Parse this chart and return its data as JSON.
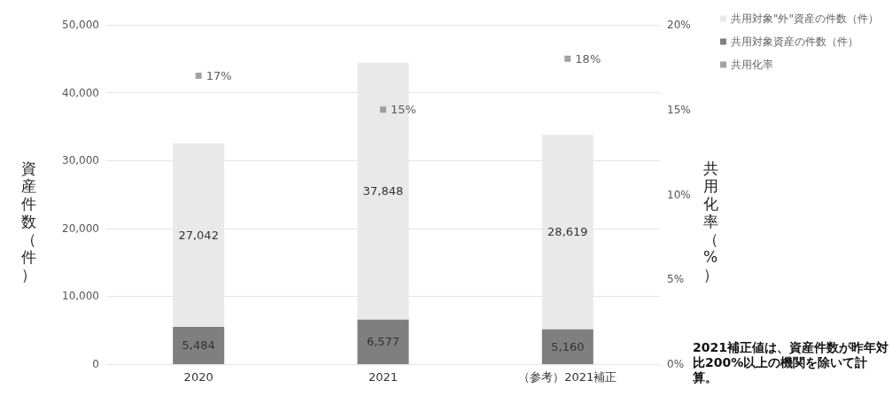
{
  "chart_data": {
    "type": "bar",
    "stacked": true,
    "categories": [
      "2020",
      "2021",
      "（参考）2021補正"
    ],
    "series": [
      {
        "name": "共用対象資産の件数（件）",
        "color": "#7f7f7f",
        "values": [
          5484,
          6577,
          5160
        ],
        "value_labels": [
          "5,484",
          "6,577",
          "5,160"
        ]
      },
      {
        "name": "共用対象\"外\"資産の件数（件）",
        "color": "#e9e9e9",
        "values": [
          27042,
          37848,
          28619
        ],
        "value_labels": [
          "27,042",
          "37,848",
          "28,619"
        ]
      },
      {
        "name": "共用化率",
        "type": "scatter",
        "axis": "y2",
        "color": "#8c8c8c",
        "values": [
          17,
          15,
          18
        ],
        "value_labels": [
          "17%",
          "15%",
          "18%"
        ]
      }
    ],
    "ylabel": "資産件数（件）",
    "y2label": "共用化率（%）",
    "ylim": [
      0,
      50000
    ],
    "yticks": [
      {
        "value": 0,
        "label": "0"
      },
      {
        "value": 10000,
        "label": "10,000"
      },
      {
        "value": 20000,
        "label": "20,000"
      },
      {
        "value": 30000,
        "label": "30,000"
      },
      {
        "value": 40000,
        "label": "40,000"
      },
      {
        "value": 50000,
        "label": "50,000"
      }
    ],
    "y2lim": [
      0,
      20
    ],
    "y2ticks": [
      {
        "value": 0,
        "label": "0%"
      },
      {
        "value": 5,
        "label": "5%"
      },
      {
        "value": 10,
        "label": "10%"
      },
      {
        "value": 15,
        "label": "15%"
      },
      {
        "value": 20,
        "label": "20%"
      }
    ],
    "grid": "y",
    "legend": "top right",
    "marker": "square",
    "annotations": [
      "2021補正値は、資産件数が昨年対比200%以上の機関を除いて計算。"
    ]
  }
}
